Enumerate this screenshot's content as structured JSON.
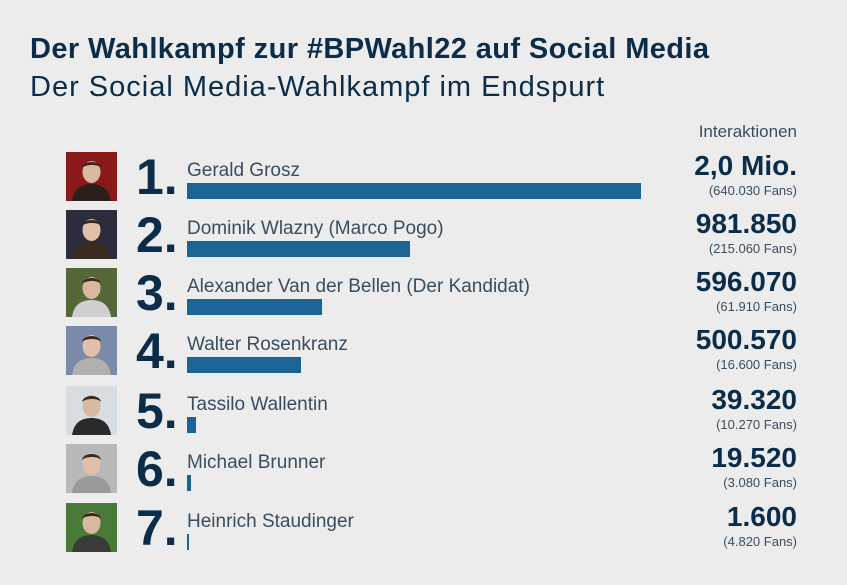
{
  "title": "Der Wahlkampf zur #BPWahl22 auf Social Media",
  "subtitle": "Der Social Media-Wahlkampf im Endspurt",
  "column_header": "Interaktionen",
  "colors": {
    "bar": "#1a6496",
    "text": "#0c2d4a",
    "background": "#ececec"
  },
  "chart_data": {
    "type": "bar",
    "orientation": "horizontal",
    "title": "Der Wahlkampf zur #BPWahl22 auf Social Media",
    "subtitle": "Der Social Media-Wahlkampf im Endspurt",
    "value_label": "Interaktionen",
    "categories": [
      "Gerald Grosz",
      "Dominik Wlazny (Marco Pogo)",
      "Alexander Van der Bellen (Der Kandidat)",
      "Walter Rosenkranz",
      "Tassilo Wallentin",
      "Michael Brunner",
      "Heinrich Staudinger"
    ],
    "values": [
      2000000,
      981850,
      596070,
      500570,
      39320,
      19520,
      1600
    ],
    "rows": [
      {
        "rank": "1.",
        "name": "Gerald Grosz",
        "interactions": 2000000,
        "value_label": "2,0 Mio.",
        "fans_label": "(640.030 Fans)",
        "photo": "person-photo-icon"
      },
      {
        "rank": "2.",
        "name": "Dominik Wlazny (Marco Pogo)",
        "interactions": 981850,
        "value_label": "981.850",
        "fans_label": "(215.060 Fans)",
        "photo": "person-photo-icon"
      },
      {
        "rank": "3.",
        "name": "Alexander Van der Bellen (Der Kandidat)",
        "interactions": 596070,
        "value_label": "596.070",
        "fans_label": "(61.910 Fans)",
        "photo": "person-photo-icon"
      },
      {
        "rank": "4.",
        "name": "Walter Rosenkranz",
        "interactions": 500570,
        "value_label": "500.570",
        "fans_label": "(16.600 Fans)",
        "photo": "person-photo-icon"
      },
      {
        "rank": "5.",
        "name": "Tassilo Wallentin",
        "interactions": 39320,
        "value_label": "39.320",
        "fans_label": "(10.270 Fans)",
        "photo": "person-photo-icon"
      },
      {
        "rank": "6.",
        "name": "Michael Brunner",
        "interactions": 19520,
        "value_label": "19.520",
        "fans_label": "(3.080 Fans)",
        "photo": "person-photo-icon"
      },
      {
        "rank": "7.",
        "name": "Heinrich Staudinger",
        "interactions": 1600,
        "value_label": "1.600",
        "fans_label": "(4.820 Fans)",
        "photo": "person-photo-icon"
      }
    ],
    "xlim": [
      0,
      2000000
    ],
    "grid": false,
    "legend": "none"
  }
}
